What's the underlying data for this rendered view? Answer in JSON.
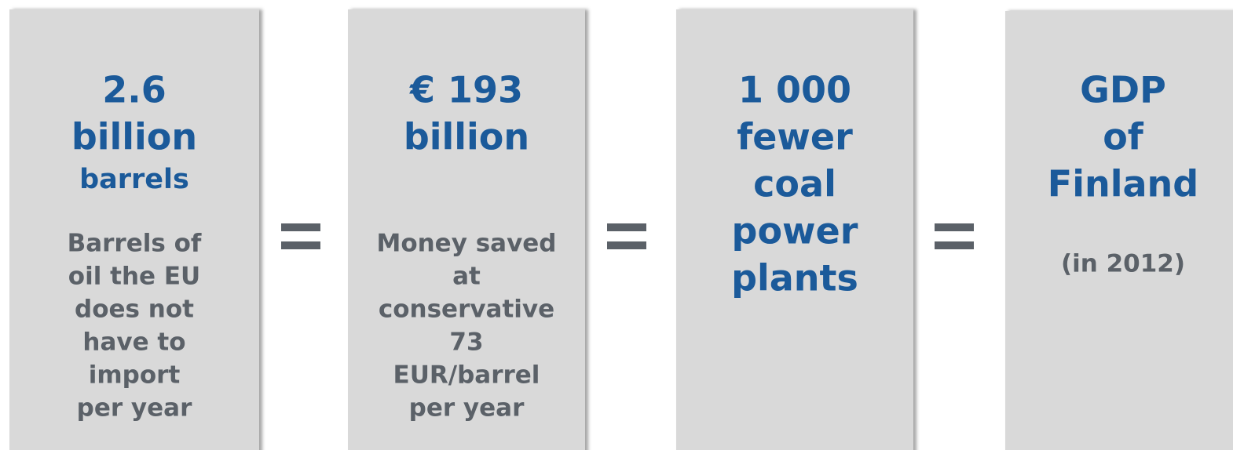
{
  "boxes": [
    {
      "headline": [
        "2.6",
        "billion"
      ],
      "subheadline": "barrels",
      "description": [
        "Barrels of",
        "oil the EU",
        "does not",
        "have to",
        "import",
        "per year"
      ]
    },
    {
      "headline": [
        "€ 193",
        "billion"
      ],
      "description": [
        "Money saved",
        "at",
        "conservative",
        "73",
        "EUR/barrel",
        "per year"
      ]
    },
    {
      "headline": [
        "1 000",
        "fewer",
        "coal",
        "power",
        "plants"
      ]
    },
    {
      "headline": [
        "GDP",
        "of",
        "Finland"
      ],
      "description": [
        "(in 2012)"
      ]
    }
  ]
}
